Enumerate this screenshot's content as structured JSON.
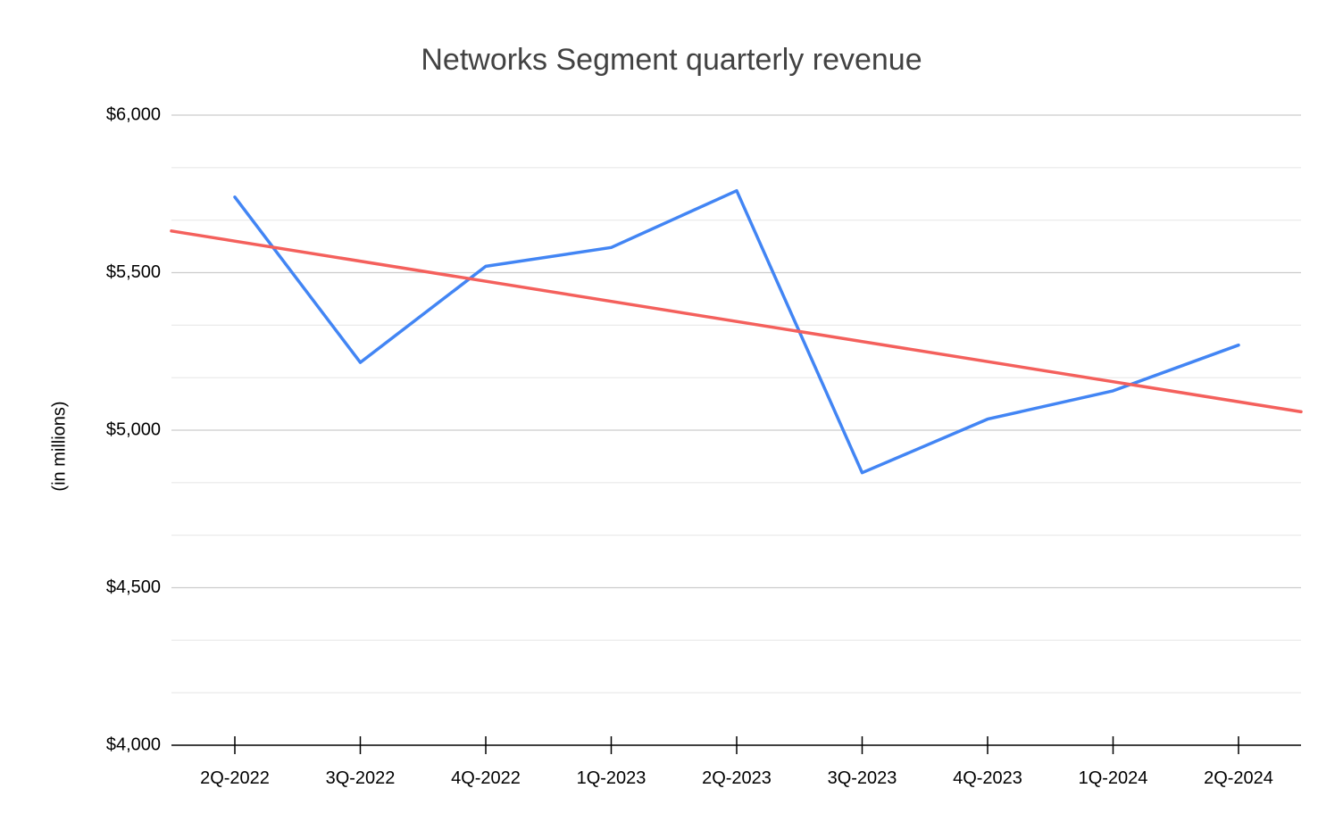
{
  "chart_data": {
    "type": "line",
    "title": "Networks Segment quarterly revenue",
    "xlabel": "",
    "ylabel": "(in millions)",
    "categories": [
      "2Q-2022",
      "3Q-2022",
      "4Q-2022",
      "1Q-2023",
      "2Q-2023",
      "3Q-2023",
      "4Q-2023",
      "1Q-2024",
      "2Q-2024"
    ],
    "series": [
      {
        "values": [
          5740,
          5215,
          5520,
          5580,
          5760,
          4865,
          5035,
          5125,
          5270
        ],
        "color": "#4285f4"
      },
      {
        "values": [
          5600,
          5535,
          5470,
          5405,
          5345,
          5280,
          5215,
          5150,
          5090
        ],
        "color": "#f4605c"
      }
    ],
    "ylim": [
      4000,
      6000
    ],
    "yticks": [
      4000,
      4500,
      5000,
      5500,
      6000
    ],
    "ytick_labels": [
      "$4,000",
      "$4,500",
      "$5,000",
      "$5,500",
      "$6,000"
    ],
    "grid": true,
    "gridline_color": "#cccccc",
    "minor_gridline_color": "#e8e8e8",
    "axis_color": "#000000"
  }
}
